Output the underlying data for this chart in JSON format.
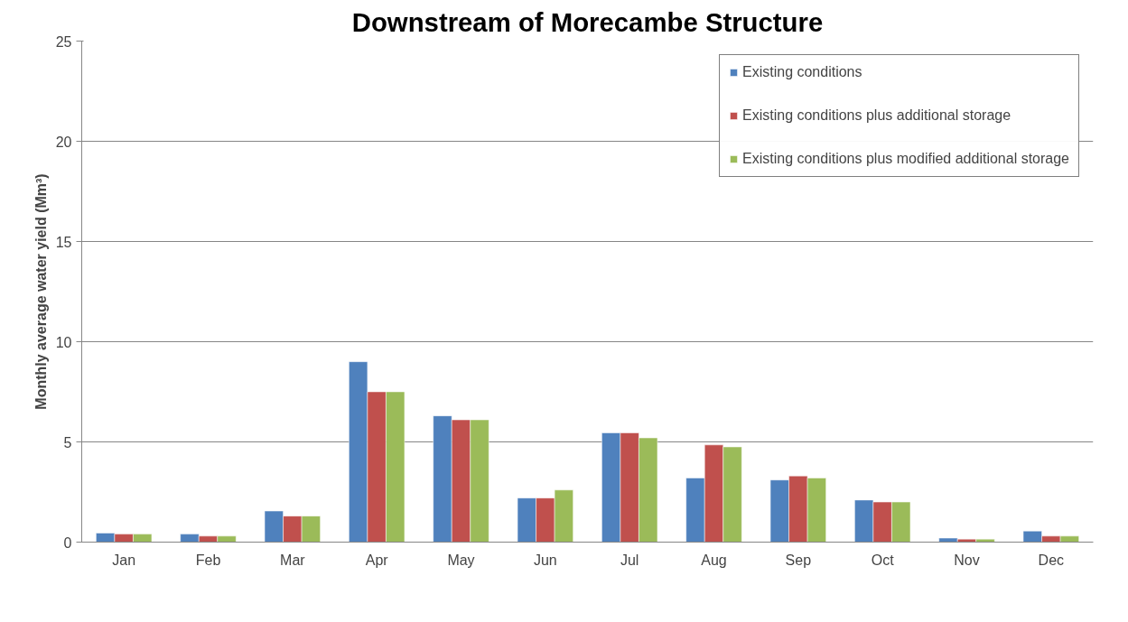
{
  "chart_data": {
    "type": "bar",
    "title": "Downstream of Morecambe Structure",
    "ylabel": "Monthly average water yield (Mm³)",
    "categories": [
      "Jan",
      "Feb",
      "Mar",
      "Apr",
      "May",
      "Jun",
      "Jul",
      "Aug",
      "Sep",
      "Oct",
      "Nov",
      "Dec"
    ],
    "series": [
      {
        "name": "Existing conditions",
        "color": "#4f81bd",
        "values": [
          0.45,
          0.4,
          1.55,
          9.0,
          6.3,
          2.2,
          5.45,
          3.2,
          3.1,
          2.1,
          0.2,
          0.55
        ]
      },
      {
        "name": "Existing conditions plus additional storage",
        "color": "#c0504d",
        "values": [
          0.4,
          0.3,
          1.3,
          7.5,
          6.1,
          2.2,
          5.45,
          4.85,
          3.3,
          2.0,
          0.15,
          0.3
        ]
      },
      {
        "name": "Existing conditions plus modified additional storage",
        "color": "#9bbb59",
        "values": [
          0.4,
          0.3,
          1.3,
          7.5,
          6.1,
          2.6,
          5.2,
          4.75,
          3.2,
          2.0,
          0.15,
          0.3
        ]
      }
    ],
    "ylim": [
      0,
      25
    ],
    "yticks": [
      0,
      5,
      10,
      15,
      20,
      25
    ],
    "grid": "y",
    "legend": "top right"
  }
}
